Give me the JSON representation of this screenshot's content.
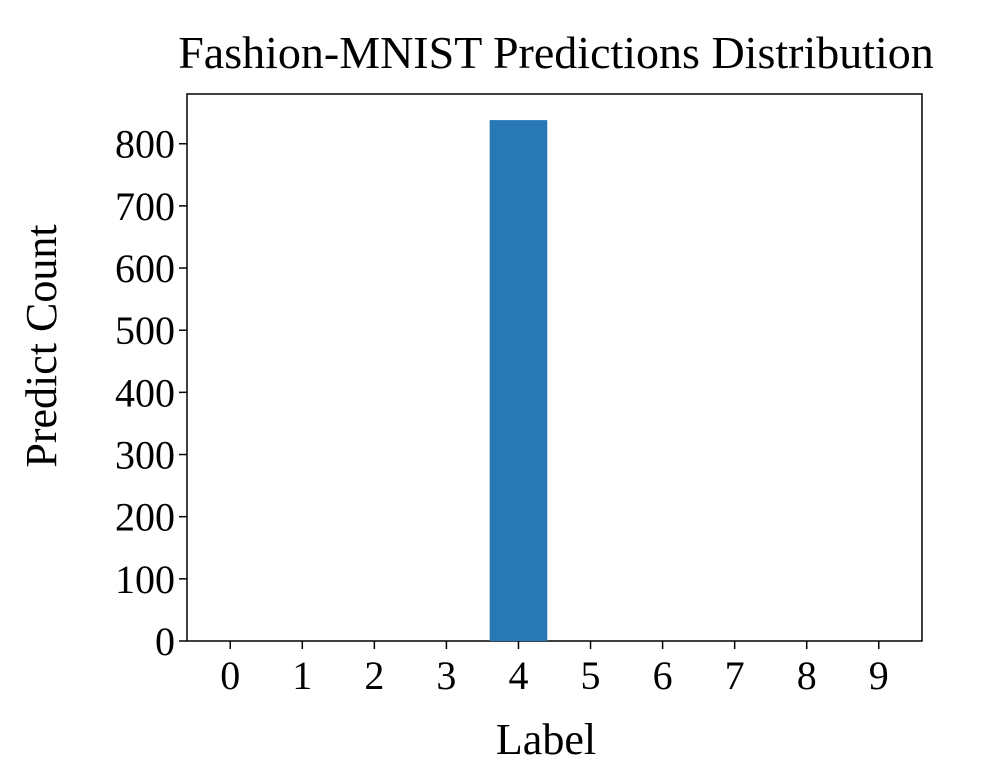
{
  "chart_data": {
    "type": "bar",
    "title": "Fashion-MNIST Predictions Distribution",
    "xlabel": "Label",
    "ylabel": "Predict Count",
    "categories": [
      "0",
      "1",
      "2",
      "3",
      "4",
      "5",
      "6",
      "7",
      "8",
      "9"
    ],
    "values": [
      0,
      0,
      0,
      0,
      838,
      0,
      0,
      0,
      0,
      0
    ],
    "ylim": [
      0,
      880
    ],
    "yticks": [
      0,
      100,
      200,
      300,
      400,
      500,
      600,
      700,
      800
    ],
    "grid": false,
    "legend": "none",
    "bar_color": "#2878b5"
  }
}
